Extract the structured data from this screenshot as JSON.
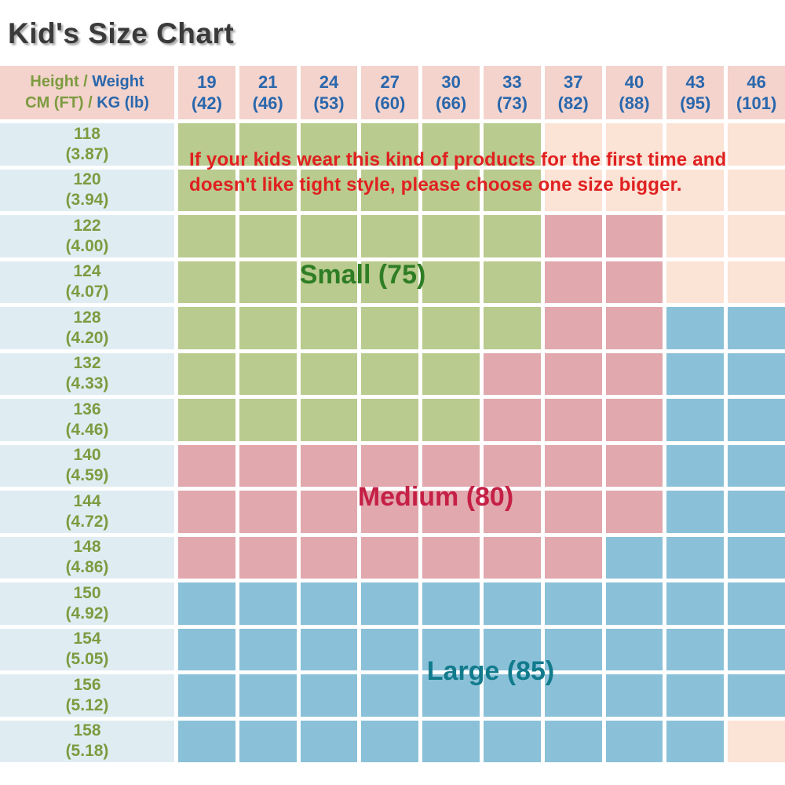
{
  "title": "Kid's Size Chart",
  "header": {
    "corner": {
      "line1_left": "Height /",
      "line1_right": " Weight",
      "line2_left": "CM (FT) /",
      "line2_right": " KG (lb)"
    }
  },
  "overlays": {
    "note_line1": "If your kids wear this kind of products for the first time and",
    "note_line2": "doesn't like tight style, please choose one size bigger.",
    "small_label": "Small (75)",
    "medium_label": "Medium (80)",
    "large_label": "Large (85)"
  },
  "chart_data": {
    "type": "table",
    "title": "Kid's Size Chart",
    "x_axis_label": "Weight KG (lb)",
    "y_axis_label": "Height CM (FT)",
    "columns": [
      {
        "kg": "19",
        "lb": "(42)"
      },
      {
        "kg": "21",
        "lb": "(46)"
      },
      {
        "kg": "24",
        "lb": "(53)"
      },
      {
        "kg": "27",
        "lb": "(60)"
      },
      {
        "kg": "30",
        "lb": "(66)"
      },
      {
        "kg": "33",
        "lb": "(73)"
      },
      {
        "kg": "37",
        "lb": "(82)"
      },
      {
        "kg": "40",
        "lb": "(88)"
      },
      {
        "kg": "43",
        "lb": "(95)"
      },
      {
        "kg": "46",
        "lb": "(101)"
      }
    ],
    "legend": [
      {
        "code": "S",
        "label": "Small (75)"
      },
      {
        "code": "M",
        "label": "Medium (80)"
      },
      {
        "code": "L",
        "label": "Large (85)"
      },
      {
        "code": "-",
        "label": "empty"
      }
    ],
    "rows": [
      {
        "cm": "118",
        "ft": "(3.87)",
        "cells": [
          "S",
          "S",
          "S",
          "S",
          "S",
          "S",
          "-",
          "-",
          "-",
          "-"
        ]
      },
      {
        "cm": "120",
        "ft": "(3.94)",
        "cells": [
          "S",
          "S",
          "S",
          "S",
          "S",
          "S",
          "-",
          "-",
          "-",
          "-"
        ]
      },
      {
        "cm": "122",
        "ft": "(4.00)",
        "cells": [
          "S",
          "S",
          "S",
          "S",
          "S",
          "S",
          "M",
          "M",
          "-",
          "-"
        ]
      },
      {
        "cm": "124",
        "ft": "(4.07)",
        "cells": [
          "S",
          "S",
          "S",
          "S",
          "S",
          "S",
          "M",
          "M",
          "-",
          "-"
        ]
      },
      {
        "cm": "128",
        "ft": "(4.20)",
        "cells": [
          "S",
          "S",
          "S",
          "S",
          "S",
          "S",
          "M",
          "M",
          "L",
          "L"
        ]
      },
      {
        "cm": "132",
        "ft": "(4.33)",
        "cells": [
          "S",
          "S",
          "S",
          "S",
          "S",
          "M",
          "M",
          "M",
          "L",
          "L"
        ]
      },
      {
        "cm": "136",
        "ft": "(4.46)",
        "cells": [
          "S",
          "S",
          "S",
          "S",
          "S",
          "M",
          "M",
          "M",
          "L",
          "L"
        ]
      },
      {
        "cm": "140",
        "ft": "(4.59)",
        "cells": [
          "M",
          "M",
          "M",
          "M",
          "M",
          "M",
          "M",
          "M",
          "L",
          "L"
        ]
      },
      {
        "cm": "144",
        "ft": "(4.72)",
        "cells": [
          "M",
          "M",
          "M",
          "M",
          "M",
          "M",
          "M",
          "M",
          "L",
          "L"
        ]
      },
      {
        "cm": "148",
        "ft": "(4.86)",
        "cells": [
          "M",
          "M",
          "M",
          "M",
          "M",
          "M",
          "M",
          "L",
          "L",
          "L"
        ]
      },
      {
        "cm": "150",
        "ft": "(4.92)",
        "cells": [
          "L",
          "L",
          "L",
          "L",
          "L",
          "L",
          "L",
          "L",
          "L",
          "L"
        ]
      },
      {
        "cm": "154",
        "ft": "(5.05)",
        "cells": [
          "L",
          "L",
          "L",
          "L",
          "L",
          "L",
          "L",
          "L",
          "L",
          "L"
        ]
      },
      {
        "cm": "156",
        "ft": "(5.12)",
        "cells": [
          "L",
          "L",
          "L",
          "L",
          "L",
          "L",
          "L",
          "L",
          "L",
          "L"
        ]
      },
      {
        "cm": "158",
        "ft": "(5.18)",
        "cells": [
          "L",
          "L",
          "L",
          "L",
          "L",
          "L",
          "L",
          "L",
          "L",
          "-"
        ]
      }
    ]
  },
  "colors": {
    "header_bg": "#f3d3cc",
    "row_header_bg": "#dfedf3",
    "small_cell": "#b9cb8e",
    "medium_cell": "#e1a8ae",
    "large_cell": "#8ac1d8",
    "empty_cell": "#fbe3d6",
    "grid_line": "#ffffff",
    "height_text": "#7d9b40",
    "weight_text": "#2a67ac",
    "note_text": "#e02020",
    "small_label_text": "#2e7d24",
    "medium_label_text": "#c52045",
    "large_label_text": "#117b8c",
    "title_text": "#3a3a3a"
  }
}
